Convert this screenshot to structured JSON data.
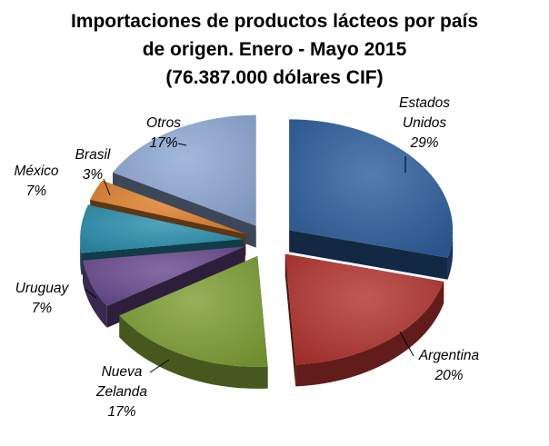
{
  "chart_data": {
    "type": "pie",
    "title_lines": [
      "Importaciones de productos lácteos por país",
      "de origen. Enero - Mayo 2015",
      "(76.387.000  dólares CIF)"
    ],
    "slices": [
      {
        "name_lines": [
          "Estados",
          "Unidos"
        ],
        "value": 29,
        "label": "29%",
        "color": "#2E5F9E"
      },
      {
        "name_lines": [
          "Argentina"
        ],
        "value": 20,
        "label": "20%",
        "color": "#B23430"
      },
      {
        "name_lines": [
          "Nueva",
          "Zelanda"
        ],
        "value": 17,
        "label": "17%",
        "color": "#7FA035"
      },
      {
        "name_lines": [
          "Uruguay"
        ],
        "value": 7,
        "label": "7%",
        "color": "#6A4A8F"
      },
      {
        "name_lines": [
          "México"
        ],
        "value": 7,
        "label": "7%",
        "color": "#2A8FAD"
      },
      {
        "name_lines": [
          "Brasil"
        ],
        "value": 3,
        "label": "3%",
        "color": "#E0812E"
      },
      {
        "name_lines": [
          "Otros"
        ],
        "value": 17,
        "label": "17%",
        "color": "#8FA9D4"
      }
    ],
    "exploded": true,
    "three_d": true
  }
}
